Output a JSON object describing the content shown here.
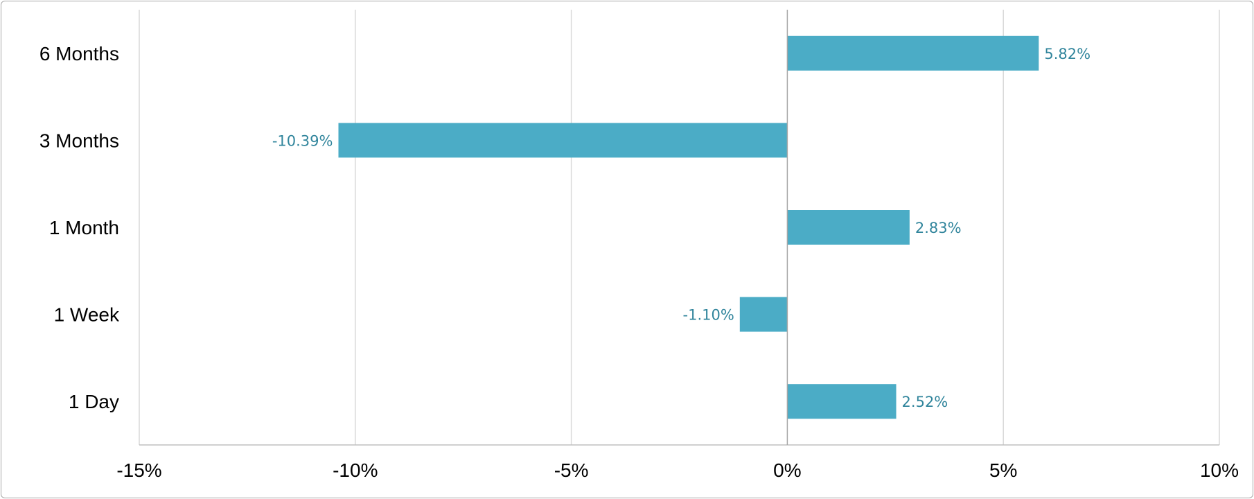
{
  "chart_data": {
    "type": "bar",
    "orientation": "horizontal",
    "categories": [
      "6 Months",
      "3 Months",
      "1 Month",
      "1 Week",
      "1 Day"
    ],
    "values": [
      5.82,
      -10.39,
      2.83,
      -1.1,
      2.52
    ],
    "value_labels": [
      "5.82%",
      "-10.39%",
      "2.83%",
      "-1.10%",
      "2.52%"
    ],
    "x_ticks": [
      -15,
      -10,
      -5,
      0,
      5,
      10
    ],
    "x_tick_labels": [
      "-15%",
      "-10%",
      "-5%",
      "0%",
      "5%",
      "10%"
    ],
    "xlim": [
      -15,
      10
    ],
    "title": "",
    "xlabel": "",
    "ylabel": "",
    "grid": "vertical",
    "legend": "none",
    "colors": {
      "bar": "#4BACC6",
      "data_label": "#31859C",
      "grid": "#d9d9d9",
      "axis": "#bfbfbf",
      "zero_line": "#a6a6a6"
    }
  }
}
